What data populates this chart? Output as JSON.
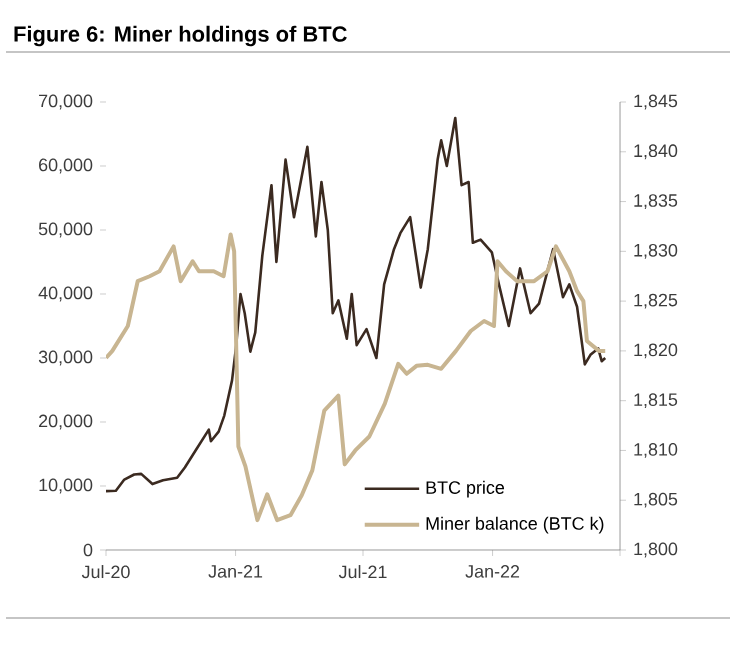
{
  "chart_data": {
    "type": "line",
    "title": "Figure 6: Miner holdings of BTC",
    "xlim": [
      "2020-07-01",
      "2022-07-01"
    ],
    "xticks": [
      {
        "value": "2020-07-01",
        "label": "Jul-20"
      },
      {
        "value": "2021-01-01",
        "label": "Jan-21"
      },
      {
        "value": "2021-07-01",
        "label": "Jul-21"
      },
      {
        "value": "2022-01-01",
        "label": "Jan-22"
      },
      {
        "value": "2022-07-01",
        "label": null
      }
    ],
    "ylim": [
      0,
      70000
    ],
    "yticks": [
      {
        "value": 0,
        "label": "0"
      },
      {
        "value": 10000,
        "label": "10,000"
      },
      {
        "value": 20000,
        "label": "20,000"
      },
      {
        "value": 30000,
        "label": "30,000"
      },
      {
        "value": 40000,
        "label": "40,000"
      },
      {
        "value": 50000,
        "label": "50,000"
      },
      {
        "value": 60000,
        "label": "60,000"
      },
      {
        "value": 70000,
        "label": "70,000"
      }
    ],
    "y2lim": [
      1800,
      1845
    ],
    "y2ticks": [
      {
        "value": 1800,
        "label": "1,800"
      },
      {
        "value": 1805,
        "label": "1,805"
      },
      {
        "value": 1810,
        "label": "1,810"
      },
      {
        "value": 1815,
        "label": "1,815"
      },
      {
        "value": 1820,
        "label": "1,820"
      },
      {
        "value": 1825,
        "label": "1,825"
      },
      {
        "value": 1830,
        "label": "1,830"
      },
      {
        "value": 1835,
        "label": "1,835"
      },
      {
        "value": 1840,
        "label": "1,840"
      },
      {
        "value": 1845,
        "label": "1,845"
      }
    ],
    "legend": "bottom right",
    "grid": false,
    "marker": "none",
    "line_style": "solid",
    "series": [
      {
        "name": "BTC price",
        "color": "#3b2a20",
        "axis": "y",
        "x": [
          "2020-07-01",
          "2020-07-15",
          "2020-07-27",
          "2020-08-10",
          "2020-08-20",
          "2020-09-05",
          "2020-09-20",
          "2020-10-10",
          "2020-10-21",
          "2020-11-05",
          "2020-11-24",
          "2020-11-27",
          "2020-12-08",
          "2020-12-16",
          "2020-12-27",
          "2021-01-02",
          "2021-01-08",
          "2021-01-14",
          "2021-01-22",
          "2021-01-29",
          "2021-02-08",
          "2021-02-21",
          "2021-02-28",
          "2021-03-13",
          "2021-03-25",
          "2021-04-13",
          "2021-04-25",
          "2021-05-03",
          "2021-05-12",
          "2021-05-19",
          "2021-05-27",
          "2021-06-08",
          "2021-06-15",
          "2021-06-22",
          "2021-07-06",
          "2021-07-20",
          "2021-07-31",
          "2021-08-14",
          "2021-08-23",
          "2021-09-06",
          "2021-09-21",
          "2021-10-01",
          "2021-10-15",
          "2021-10-20",
          "2021-10-28",
          "2021-11-09",
          "2021-11-18",
          "2021-11-28",
          "2021-12-04",
          "2021-12-15",
          "2021-12-31",
          "2022-01-10",
          "2022-01-24",
          "2022-02-09",
          "2022-02-24",
          "2022-03-08",
          "2022-03-28",
          "2022-04-11",
          "2022-04-20",
          "2022-05-01",
          "2022-05-12",
          "2022-05-20",
          "2022-05-31",
          "2022-06-05",
          "2022-06-10"
        ],
        "values": [
          9200,
          9250,
          11000,
          11800,
          11900,
          10300,
          10900,
          11300,
          12900,
          15500,
          18800,
          17000,
          18500,
          21000,
          26500,
          32000,
          40000,
          37000,
          31000,
          34000,
          46000,
          57000,
          45000,
          61000,
          52000,
          63000,
          49000,
          57500,
          50000,
          37000,
          39000,
          33000,
          40000,
          32000,
          34500,
          30000,
          41500,
          47000,
          49500,
          52000,
          41000,
          47000,
          61000,
          64000,
          60000,
          67500,
          57000,
          57500,
          48000,
          48500,
          46500,
          41500,
          35000,
          44000,
          37000,
          38500,
          47000,
          39500,
          41500,
          38000,
          29000,
          30500,
          31500,
          29500,
          30000
        ]
      },
      {
        "name": "Miner balance (BTC k)",
        "color": "#c8b591",
        "axis": "y2",
        "x": [
          "2020-07-01",
          "2020-07-10",
          "2020-08-01",
          "2020-08-15",
          "2020-09-01",
          "2020-09-15",
          "2020-10-05",
          "2020-10-15",
          "2020-11-01",
          "2020-11-10",
          "2020-12-01",
          "2020-12-15",
          "2020-12-25",
          "2020-12-30",
          "2021-01-05",
          "2021-01-15",
          "2021-02-01",
          "2021-02-15",
          "2021-03-01",
          "2021-03-20",
          "2021-04-05",
          "2021-04-20",
          "2021-05-07",
          "2021-05-27",
          "2021-06-05",
          "2021-06-20",
          "2021-07-10",
          "2021-08-01",
          "2021-08-20",
          "2021-09-01",
          "2021-09-15",
          "2021-10-01",
          "2021-10-20",
          "2021-11-10",
          "2021-12-01",
          "2021-12-20",
          "2022-01-03",
          "2022-01-08",
          "2022-01-20",
          "2022-02-05",
          "2022-03-01",
          "2022-03-20",
          "2022-04-01",
          "2022-04-20",
          "2022-05-01",
          "2022-05-10",
          "2022-05-15",
          "2022-06-01",
          "2022-06-10"
        ],
        "values": [
          1819.3,
          1820,
          1822.5,
          1827,
          1827.5,
          1828,
          1830.5,
          1827,
          1829,
          1828,
          1828,
          1827.5,
          1831.7,
          1830,
          1810.4,
          1808.4,
          1803,
          1805.6,
          1803,
          1803.5,
          1805.5,
          1808,
          1814,
          1815.5,
          1808.6,
          1810,
          1811.4,
          1814.7,
          1818.7,
          1817.7,
          1818.5,
          1818.6,
          1818.2,
          1820,
          1822,
          1823,
          1822.5,
          1829,
          1828,
          1827,
          1827,
          1828,
          1830.5,
          1828,
          1826,
          1825,
          1821,
          1820,
          1820
        ]
      }
    ]
  }
}
